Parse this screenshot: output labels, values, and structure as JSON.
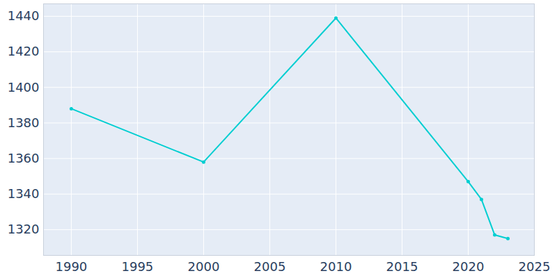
{
  "chart_data": {
    "type": "line",
    "x": [
      1990,
      2000,
      2010,
      2020,
      2021,
      2022,
      2023
    ],
    "values": [
      1388,
      1358,
      1439,
      1347,
      1337,
      1317,
      1315
    ],
    "color": "#00CED1",
    "marker": "circle",
    "xlim": [
      1987.9,
      2025
    ],
    "ylim": [
      1305.5,
      1447
    ],
    "xticks": [
      1990,
      1995,
      2000,
      2005,
      2010,
      2015,
      2020,
      2025
    ],
    "yticks": [
      1320,
      1340,
      1360,
      1380,
      1400,
      1420,
      1440
    ],
    "grid": true
  }
}
